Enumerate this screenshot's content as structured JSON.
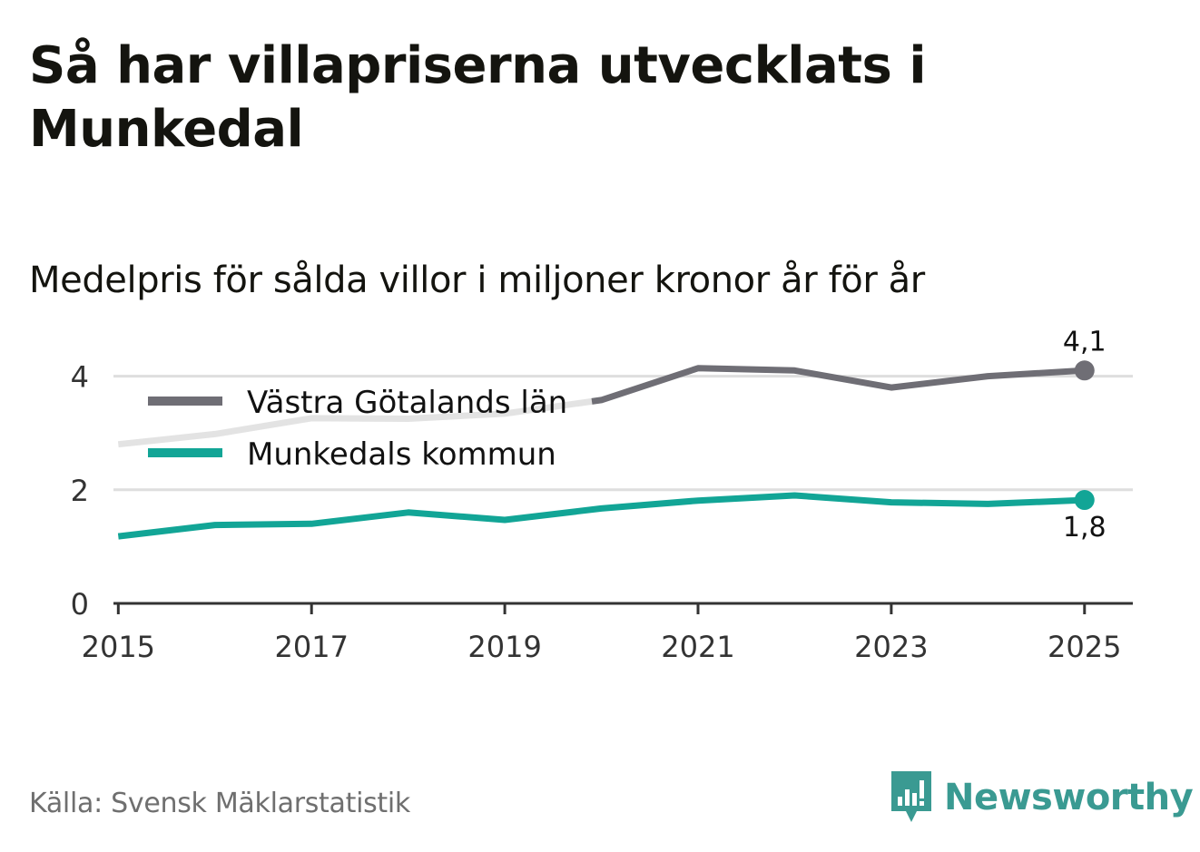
{
  "header": {
    "title": "Så har villapriserna utvecklats i Munkedal",
    "subtitle": "Medelpris för sålda villor i miljoner kronor år för år"
  },
  "footer": {
    "source": "Källa: Svensk Mäklarstatistik",
    "brand": "Newsworthy",
    "brand_icon": "newsworthy-logo-icon"
  },
  "colors": {
    "vg": "#6f6e75",
    "vg_faded": "#e3e3e3",
    "munkedal": "#12a596",
    "grid": "#dedede",
    "axis": "#333333",
    "brand": "#3a9a92"
  },
  "chart_data": {
    "type": "line",
    "title": "Så har villapriserna utvecklats i Munkedal",
    "subtitle": "Medelpris för sålda villor i miljoner kronor år för år",
    "xlabel": "",
    "ylabel": "",
    "x": [
      2015,
      2016,
      2017,
      2018,
      2019,
      2020,
      2021,
      2022,
      2023,
      2024,
      2025
    ],
    "xlim": [
      2014.95,
      2025.5
    ],
    "ylim": [
      0,
      4.6
    ],
    "x_ticks": [
      2015,
      2017,
      2019,
      2021,
      2023,
      2025
    ],
    "x_tick_labels": [
      "2015",
      "2017",
      "2019",
      "2021",
      "2023",
      "2025"
    ],
    "y_ticks": [
      0,
      2,
      4
    ],
    "y_tick_labels": [
      "0",
      "2",
      "4"
    ],
    "grid": true,
    "legend_position": "top-left",
    "series": [
      {
        "name": "Västra Götalands län",
        "values": [
          2.8,
          2.98,
          3.26,
          3.25,
          3.34,
          3.58,
          4.14,
          4.1,
          3.8,
          4.0,
          4.1
        ],
        "end_label": "4,1"
      },
      {
        "name": "Munkedals kommun",
        "values": [
          1.18,
          1.38,
          1.4,
          1.6,
          1.47,
          1.67,
          1.81,
          1.9,
          1.78,
          1.75,
          1.82
        ],
        "end_label": "1,8"
      }
    ]
  }
}
